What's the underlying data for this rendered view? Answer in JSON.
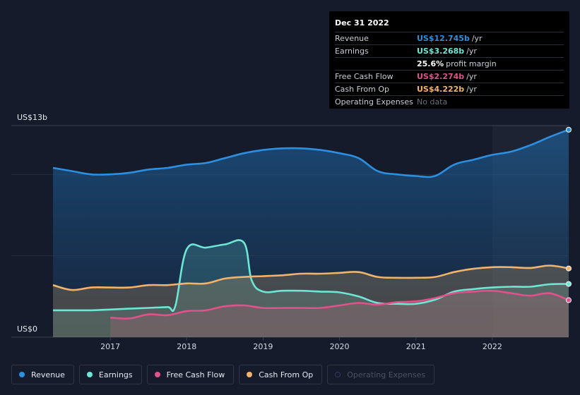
{
  "tooltip": {
    "date": "Dec 31 2022",
    "rows": [
      {
        "label": "Revenue",
        "value": "US$12.745b",
        "unit": "/yr",
        "color": "#2d8fe0"
      },
      {
        "label": "Earnings",
        "value": "US$3.268b",
        "unit": "/yr",
        "color": "#6ee6d6"
      },
      {
        "label": "",
        "value": "25.6%",
        "unit": "profit margin",
        "color": "#ffffff"
      },
      {
        "label": "Free Cash Flow",
        "value": "US$2.274b",
        "unit": "/yr",
        "color": "#e0528a"
      },
      {
        "label": "Cash From Op",
        "value": "US$4.222b",
        "unit": "/yr",
        "color": "#f2b46a"
      },
      {
        "label": "Operating Expenses",
        "value": "No data",
        "unit": "",
        "color": "#6b6f78"
      }
    ]
  },
  "axis": {
    "y_top_label": "US$13b",
    "y_bottom_label": "US$0"
  },
  "legend": [
    {
      "label": "Revenue",
      "color": "#2d8fe0",
      "enabled": true
    },
    {
      "label": "Earnings",
      "color": "#6ee6d6",
      "enabled": true
    },
    {
      "label": "Free Cash Flow",
      "color": "#e0528a",
      "enabled": true
    },
    {
      "label": "Cash From Op",
      "color": "#f2b46a",
      "enabled": true
    },
    {
      "label": "Operating Expenses",
      "color": "#2f3a66",
      "enabled": false
    }
  ],
  "chart_data": {
    "type": "area",
    "x_ticks": [
      "2017",
      "2018",
      "2019",
      "2020",
      "2021",
      "2022"
    ],
    "ylim": [
      0,
      13
    ],
    "y_unit": "US$ billions",
    "series": [
      {
        "name": "Revenue",
        "color": "#2d8fe0",
        "x": [
          2016.25,
          2016.5,
          2016.75,
          2017.0,
          2017.25,
          2017.5,
          2017.75,
          2018.0,
          2018.25,
          2018.5,
          2018.75,
          2019.0,
          2019.25,
          2019.5,
          2019.75,
          2020.0,
          2020.25,
          2020.5,
          2020.75,
          2021.0,
          2021.25,
          2021.5,
          2021.75,
          2022.0,
          2022.25,
          2022.5,
          2022.75,
          2023.0
        ],
        "y": [
          10.4,
          10.2,
          10.0,
          10.0,
          10.1,
          10.3,
          10.4,
          10.6,
          10.7,
          11.0,
          11.3,
          11.5,
          11.6,
          11.6,
          11.5,
          11.3,
          11.0,
          10.2,
          10.0,
          9.9,
          9.9,
          10.6,
          10.9,
          11.2,
          11.4,
          11.8,
          12.3,
          12.745
        ]
      },
      {
        "name": "Earnings",
        "color": "#6ee6d6",
        "x": [
          2016.25,
          2016.5,
          2016.75,
          2017.0,
          2017.25,
          2017.5,
          2017.75,
          2017.85,
          2018.0,
          2018.25,
          2018.5,
          2018.75,
          2018.85,
          2019.0,
          2019.25,
          2019.5,
          2019.75,
          2020.0,
          2020.25,
          2020.5,
          2020.75,
          2021.0,
          2021.25,
          2021.5,
          2021.75,
          2022.0,
          2022.25,
          2022.5,
          2022.75,
          2023.0
        ],
        "y": [
          1.65,
          1.65,
          1.65,
          1.7,
          1.75,
          1.8,
          1.85,
          1.9,
          5.4,
          5.5,
          5.7,
          5.8,
          3.5,
          2.8,
          2.85,
          2.85,
          2.8,
          2.75,
          2.5,
          2.1,
          2.05,
          2.05,
          2.3,
          2.8,
          2.95,
          3.05,
          3.1,
          3.1,
          3.25,
          3.268
        ]
      },
      {
        "name": "Free Cash Flow",
        "color": "#e0528a",
        "x": [
          2017.0,
          2017.25,
          2017.5,
          2017.75,
          2018.0,
          2018.25,
          2018.5,
          2018.75,
          2019.0,
          2019.25,
          2019.5,
          2019.75,
          2020.0,
          2020.25,
          2020.5,
          2020.75,
          2021.0,
          2021.25,
          2021.5,
          2021.75,
          2022.0,
          2022.25,
          2022.5,
          2022.75,
          2023.0
        ],
        "y": [
          1.2,
          1.15,
          1.4,
          1.35,
          1.6,
          1.65,
          1.9,
          1.95,
          1.8,
          1.8,
          1.8,
          1.8,
          1.95,
          2.1,
          2.0,
          2.15,
          2.2,
          2.4,
          2.7,
          2.8,
          2.85,
          2.7,
          2.55,
          2.7,
          2.274
        ]
      },
      {
        "name": "Cash From Op",
        "color": "#f2b46a",
        "x": [
          2016.25,
          2016.5,
          2016.75,
          2017.0,
          2017.25,
          2017.5,
          2017.75,
          2018.0,
          2018.25,
          2018.5,
          2018.75,
          2019.0,
          2019.25,
          2019.5,
          2019.75,
          2020.0,
          2020.25,
          2020.5,
          2020.75,
          2021.0,
          2021.25,
          2021.5,
          2021.75,
          2022.0,
          2022.25,
          2022.5,
          2022.75,
          2023.0
        ],
        "y": [
          3.2,
          2.9,
          3.05,
          3.05,
          3.05,
          3.2,
          3.2,
          3.3,
          3.3,
          3.6,
          3.7,
          3.75,
          3.8,
          3.9,
          3.9,
          3.95,
          4.0,
          3.7,
          3.65,
          3.65,
          3.7,
          4.0,
          4.2,
          4.3,
          4.3,
          4.25,
          4.4,
          4.222
        ]
      }
    ]
  }
}
